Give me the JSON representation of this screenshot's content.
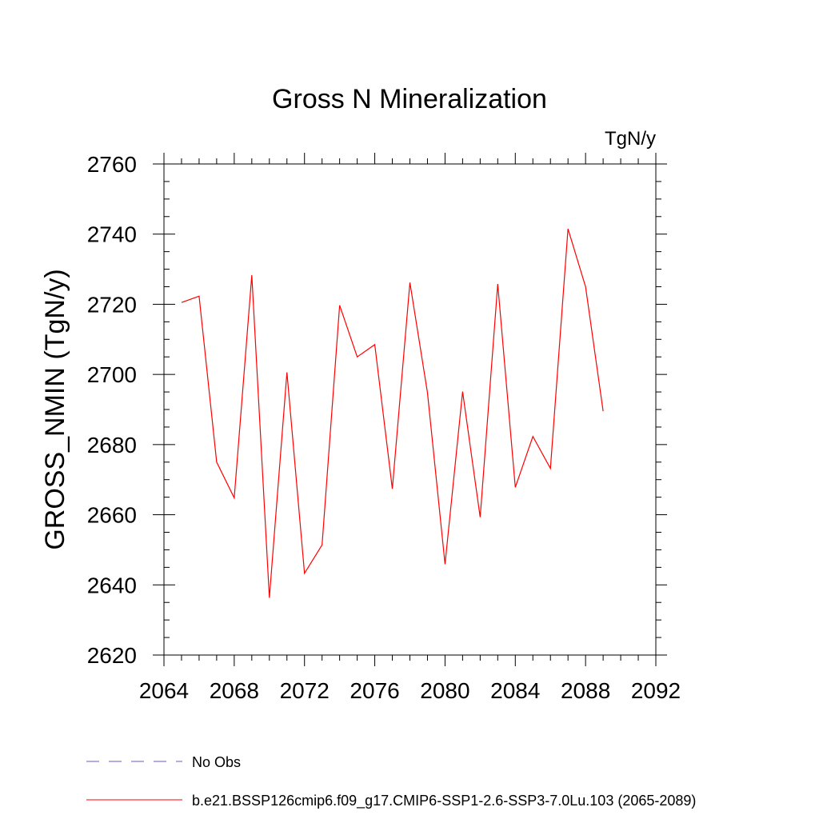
{
  "chart_data": {
    "type": "line",
    "title": "Gross N Mineralization",
    "units": "TgN/y",
    "xlabel": "",
    "ylabel": "GROSS_NMIN  (TgN/y)",
    "xlim": [
      2064,
      2092
    ],
    "ylim": [
      2620,
      2760
    ],
    "x_ticks": [
      2064,
      2068,
      2072,
      2076,
      2080,
      2084,
      2088,
      2092
    ],
    "y_ticks": [
      2620,
      2640,
      2660,
      2680,
      2700,
      2720,
      2740,
      2760
    ],
    "x_tick_labels": [
      "2064",
      "2068",
      "2072",
      "2076",
      "2080",
      "2084",
      "2088",
      "2092"
    ],
    "y_tick_labels": [
      "2620",
      "2640",
      "2660",
      "2680",
      "2700",
      "2720",
      "2740",
      "2760"
    ],
    "grid": false,
    "legend_position": "bottom",
    "series": [
      {
        "name": "No Obs",
        "color": "#6a5acd",
        "style": "dashed",
        "x": [],
        "y": []
      },
      {
        "name": "b.e21.BSSP126cmip6.f09_g17.CMIP6-SSP1-2.6-SSP3-7.0Lu.103 (2065-2089)",
        "color": "#ff0000",
        "style": "solid",
        "x": [
          2065,
          2066,
          2067,
          2068,
          2069,
          2070,
          2071,
          2072,
          2073,
          2074,
          2075,
          2076,
          2077,
          2078,
          2079,
          2080,
          2081,
          2082,
          2083,
          2084,
          2085,
          2086,
          2087,
          2088,
          2089
        ],
        "y": [
          2720.5,
          2722.3,
          2675.0,
          2664.8,
          2728.3,
          2636.3,
          2700.6,
          2643.3,
          2651.4,
          2719.7,
          2705.0,
          2708.5,
          2667.4,
          2726.2,
          2694.8,
          2645.9,
          2695.1,
          2659.3,
          2725.8,
          2667.8,
          2682.3,
          2673.2,
          2741.5,
          2725.0,
          2689.5
        ]
      }
    ]
  }
}
